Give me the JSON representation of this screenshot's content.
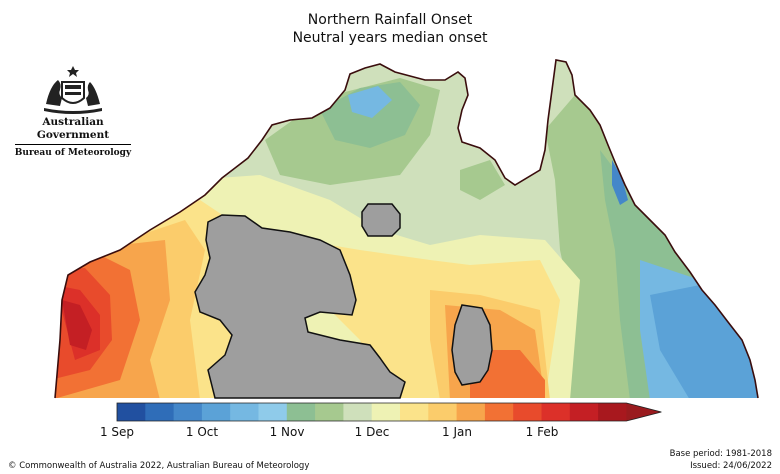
{
  "title": "Northern Rainfall Onset",
  "subtitle": "Neutral years median onset",
  "logo": {
    "line1": "Australian Government",
    "line2": "Bureau of Meteorology"
  },
  "legend": {
    "colors": [
      "#2150a0",
      "#2f6db8",
      "#4487c9",
      "#5ba2d7",
      "#75b8e2",
      "#8fcbea",
      "#8dbf93",
      "#a6c98f",
      "#cfe0bb",
      "#eef2b4",
      "#fbe38a",
      "#fbcc6b",
      "#f7a54c",
      "#f27134",
      "#e84b2c",
      "#dc3029",
      "#c41f24",
      "#a8181e",
      "#9a1b1e"
    ],
    "ticks": [
      "1 Sep",
      "1 Oct",
      "1 Nov",
      "1 Dec",
      "1 Jan",
      "1 Feb"
    ]
  },
  "footer": {
    "copyright": "© Commonwealth of Australia 2022, Australian Bureau of Meteorology",
    "base_period": "Base period: 1981-2018",
    "issued": "Issued: 24/06/2022"
  }
}
